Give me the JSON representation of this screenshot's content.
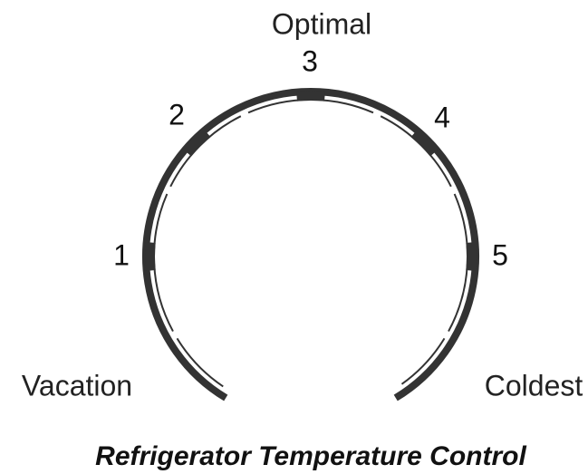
{
  "dial": {
    "positions": [
      {
        "label": "1"
      },
      {
        "label": "2"
      },
      {
        "label": "3"
      },
      {
        "label": "4"
      },
      {
        "label": "5"
      }
    ],
    "optimal_label": "Optimal",
    "left_end_label": "Vacation",
    "right_end_label": "Coldest"
  },
  "title": "Refrigerator Temperature Control"
}
